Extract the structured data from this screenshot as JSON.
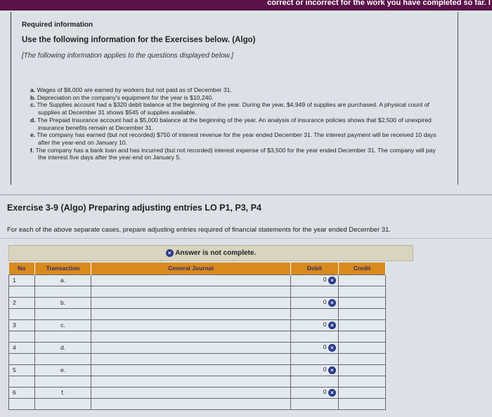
{
  "topbar": {
    "text": "correct or incorrect for the work you have completed so far. I"
  },
  "info": {
    "required": "Required information",
    "use": "Use the following information for the Exercises below. (Algo)",
    "note": "[The following information applies to the questions displayed below.]",
    "items": [
      {
        "letter": "a.",
        "text": "Wages of $8,000 are earned by workers but not paid as of December 31."
      },
      {
        "letter": "b.",
        "text": "Depreciation on the company's equipment for the year is $10,240."
      },
      {
        "letter": "c.",
        "text": "The Supplies account had a $320 debit balance at the beginning of the year. During the year, $4,949 of supplies are purchased. A physical count of supplies at December 31 shows $545 of supplies available."
      },
      {
        "letter": "d.",
        "text": "The Prepaid Insurance account had a $5,000 balance at the beginning of the year. An analysis of insurance policies shows that $2,500 of unexpired insurance benefits remain at December 31."
      },
      {
        "letter": "e.",
        "text": "The company has earned (but not recorded) $750 of interest revenue for the year ended December 31. The interest payment will be received 10 days after the year-end on January 10."
      },
      {
        "letter": "f.",
        "text": "The company has a bank loan and has incurred (but not recorded) interest expense of $3,500 for the year ended December 31. The company will pay the interest five days after the year-end on January 5."
      }
    ]
  },
  "exercise": {
    "title": "Exercise 3-9 (Algo) Preparing adjusting entries LO P1, P3, P4",
    "instruction": "For each of the above separate cases, prepare adjusting entries required of financial statements for the year ended December 31."
  },
  "banner": {
    "icon": "x-circle-icon",
    "text": "Answer is not complete."
  },
  "table": {
    "headers": [
      "No",
      "Transaction",
      "General Journal",
      "Debit",
      "Credit"
    ],
    "rows": [
      {
        "no": "1",
        "tr": "a.",
        "debit": "0"
      },
      {
        "no": "",
        "tr": "",
        "debit": ""
      },
      {
        "no": "2",
        "tr": "b.",
        "debit": "0"
      },
      {
        "no": "",
        "tr": "",
        "debit": ""
      },
      {
        "no": "3",
        "tr": "c.",
        "debit": "0"
      },
      {
        "no": "",
        "tr": "",
        "debit": ""
      },
      {
        "no": "4",
        "tr": "d.",
        "debit": "0"
      },
      {
        "no": "",
        "tr": "",
        "debit": ""
      },
      {
        "no": "5",
        "tr": "e.",
        "debit": "0"
      },
      {
        "no": "",
        "tr": "",
        "debit": ""
      },
      {
        "no": "6",
        "tr": "f.",
        "debit": "0"
      },
      {
        "no": "",
        "tr": "",
        "debit": ""
      }
    ]
  },
  "colors": {
    "topbar": "#5a1248",
    "header": "#d98a1c",
    "icon": "#2a3a88"
  }
}
